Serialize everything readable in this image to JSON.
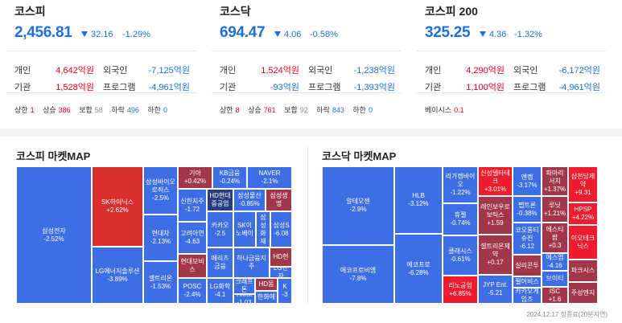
{
  "indices": [
    {
      "title": "코스피",
      "price": "2,456.81",
      "change": "32.16",
      "pct": "-1.29%",
      "rows": [
        {
          "l1": "개인",
          "v1": "4,642억원",
          "c1": "red",
          "l2": "외국인",
          "v2": "-7,125억원",
          "c2": "blue"
        },
        {
          "l1": "기관",
          "v1": "1,528억원",
          "c1": "red",
          "l2": "프로그램",
          "v2": "-4,961억원",
          "c2": "blue"
        }
      ],
      "stats": [
        {
          "label": "상한",
          "value": "1",
          "color": "red"
        },
        {
          "label": "상승",
          "value": "386",
          "color": "red"
        },
        {
          "label": "보합",
          "value": "58",
          "color": "gray"
        },
        {
          "label": "하락",
          "value": "496",
          "color": "blue"
        },
        {
          "label": "하한",
          "value": "0",
          "color": "blue"
        }
      ]
    },
    {
      "title": "코스닥",
      "price": "694.47",
      "change": "4.06",
      "pct": "-0.58%",
      "rows": [
        {
          "l1": "개인",
          "v1": "1,524억원",
          "c1": "red",
          "l2": "외국인",
          "v2": "-1,238억원",
          "c2": "blue"
        },
        {
          "l1": "기관",
          "v1": "-93억원",
          "c1": "blue",
          "l2": "프로그램",
          "v2": "-1,393억원",
          "c2": "blue"
        }
      ],
      "stats": [
        {
          "label": "상한",
          "value": "8",
          "color": "red"
        },
        {
          "label": "상승",
          "value": "761",
          "color": "red"
        },
        {
          "label": "보합",
          "value": "92",
          "color": "gray"
        },
        {
          "label": "하락",
          "value": "843",
          "color": "blue"
        },
        {
          "label": "하한",
          "value": "0",
          "color": "blue"
        }
      ]
    },
    {
      "title": "코스피 200",
      "price": "325.25",
      "change": "4.36",
      "pct": "-1.32%",
      "rows": [
        {
          "l1": "개인",
          "v1": "4,290억원",
          "c1": "red",
          "l2": "외국인",
          "v2": "-6,172억원",
          "c2": "blue"
        },
        {
          "l1": "기관",
          "v1": "1,100억원",
          "c1": "red",
          "l2": "프로그램",
          "v2": "-4,961억원",
          "c2": "blue"
        }
      ],
      "stats": [
        {
          "label": "베이시스",
          "value": "0.1",
          "color": "red"
        }
      ]
    }
  ],
  "kospi_map": {
    "title": "코스피 마켓MAP",
    "cells": [
      {
        "name": "삼성전자",
        "pct": "-2.52%",
        "color": "blue"
      },
      {
        "name": "SK하이닉스",
        "pct": "+2.62%",
        "color": "red"
      },
      {
        "name": "LG에너지솔루션",
        "pct": "-3.89%",
        "color": "blue"
      },
      {
        "name": "삼성바이오로직스",
        "pct": "-2.5%",
        "color": "blue"
      },
      {
        "name": "현대차",
        "pct": "-2.13%",
        "color": "blue"
      },
      {
        "name": "셀트리온",
        "pct": "-1.53%",
        "color": "blue"
      },
      {
        "name": "기아",
        "pct": "+0.42%",
        "color": "darkred"
      },
      {
        "name": "KB금융",
        "pct": "-0.24%",
        "color": "blue"
      },
      {
        "name": "NAVER",
        "pct": "-2.1%",
        "color": "blue"
      },
      {
        "name": "신한지주",
        "pct": "-1.72",
        "color": "blue"
      },
      {
        "name": "HD현대중공업",
        "pct": "",
        "color": "navy"
      },
      {
        "name": "삼성물산",
        "pct": "-0.85%",
        "color": "blue"
      },
      {
        "name": "삼성생명",
        "pct": "",
        "color": "darkred"
      },
      {
        "name": "고려아연",
        "pct": "-4.63",
        "color": "blue"
      },
      {
        "name": "카카오",
        "pct": "-2.5",
        "color": "blue"
      },
      {
        "name": "SK이노베이",
        "pct": "",
        "color": "blue"
      },
      {
        "name": "삼성화재",
        "pct": "",
        "color": "blue"
      },
      {
        "name": "삼성S",
        "pct": "-6.08",
        "color": "blue"
      },
      {
        "name": "현대모비스",
        "pct": "",
        "color": "darkred"
      },
      {
        "name": "메리츠금융",
        "pct": "",
        "color": "blue"
      },
      {
        "name": "하나금융지주",
        "pct": "",
        "color": "blue"
      },
      {
        "name": "HD현",
        "pct": "",
        "color": "darkred"
      },
      {
        "name": "LG전자",
        "pct": "",
        "color": "blue"
      },
      {
        "name": "POSC",
        "pct": "-2.4%",
        "color": "blue"
      },
      {
        "name": "LG화학",
        "pct": "-4.1",
        "color": "blue"
      },
      {
        "name": "크래프톤",
        "pct": "",
        "color": "blue"
      },
      {
        "name": "HMM",
        "pct": "-1.03",
        "color": "blue"
      },
      {
        "name": "HD몸",
        "pct": "",
        "color": "darkred"
      },
      {
        "name": "한화에",
        "pct": "",
        "color": "blue"
      },
      {
        "name": "K",
        "pct": "-3",
        "color": "blue"
      }
    ]
  },
  "kosdaq_map": {
    "title": "코스닥 마켓MAP",
    "cells": [
      {
        "name": "알테오젠",
        "pct": "-2.9%",
        "color": "blue"
      },
      {
        "name": "에코프로비엠",
        "pct": "-7.8%",
        "color": "blue"
      },
      {
        "name": "HLB",
        "pct": "-3.12%",
        "color": "blue"
      },
      {
        "name": "에코프로",
        "pct": "-6.28%",
        "color": "blue"
      },
      {
        "name": "리가켐바이오",
        "pct": "-1.22%",
        "color": "blue"
      },
      {
        "name": "휴젤",
        "pct": "-0.74%",
        "color": "blue"
      },
      {
        "name": "클래시스",
        "pct": "-0.61%",
        "color": "blue"
      },
      {
        "name": "리노공업",
        "pct": "+6.85%",
        "color": "brightred"
      },
      {
        "name": "삼천당제약",
        "pct": "+9.31",
        "color": "brightred"
      },
      {
        "name": "신성델타테크",
        "pct": "+3.01%",
        "color": "brightred"
      },
      {
        "name": "엔켐",
        "pct": "-3.17%",
        "color": "blue"
      },
      {
        "name": "파마리서치",
        "pct": "+1.37%",
        "color": "darkred"
      },
      {
        "name": "레인보우로보틱스",
        "pct": "+1.59",
        "color": "darkred"
      },
      {
        "name": "펩트론",
        "pct": "-0.38%",
        "color": "blue"
      },
      {
        "name": "루닛",
        "pct": "+1.21%",
        "color": "darkred"
      },
      {
        "name": "HPSP",
        "pct": "+4.22%",
        "color": "brightred"
      },
      {
        "name": "셀트리온제약",
        "pct": "+0.17",
        "color": "darkred"
      },
      {
        "name": "코오롱티슈진",
        "pct": "-6.12",
        "color": "blue"
      },
      {
        "name": "에스티팜",
        "pct": "+0.3",
        "color": "darkred"
      },
      {
        "name": "에스엠",
        "pct": "-4.16",
        "color": "blue"
      },
      {
        "name": "이오테크닉스",
        "pct": "",
        "color": "brightred"
      },
      {
        "name": "JYP Ent.",
        "pct": "-5.21",
        "color": "blue"
      },
      {
        "name": "실리콘투",
        "pct": "",
        "color": "darkred"
      },
      {
        "name": "서진시스템",
        "pct": "",
        "color": "blue"
      },
      {
        "name": "브이티",
        "pct": "",
        "color": "blue"
      },
      {
        "name": "파크시스",
        "pct": "",
        "color": "darkred"
      },
      {
        "name": "펄어비스",
        "pct": "",
        "color": "blue"
      },
      {
        "name": "카카오게임즈",
        "pct": "",
        "color": "blue"
      },
      {
        "name": "ISC",
        "pct": "+1.6",
        "color": "darkred"
      },
      {
        "name": "주성엔지",
        "pct": "",
        "color": "darkred"
      }
    ]
  },
  "footer": "2024.12.17 장종료(20분지연)",
  "colors": {
    "up": "#e8001c",
    "down": "#1f6fd8",
    "tile_down": "#3d6ee3",
    "tile_up": "#d9302d",
    "tile_up_strong": "#ee1c2e",
    "tile_up_weak": "#a3374a"
  }
}
